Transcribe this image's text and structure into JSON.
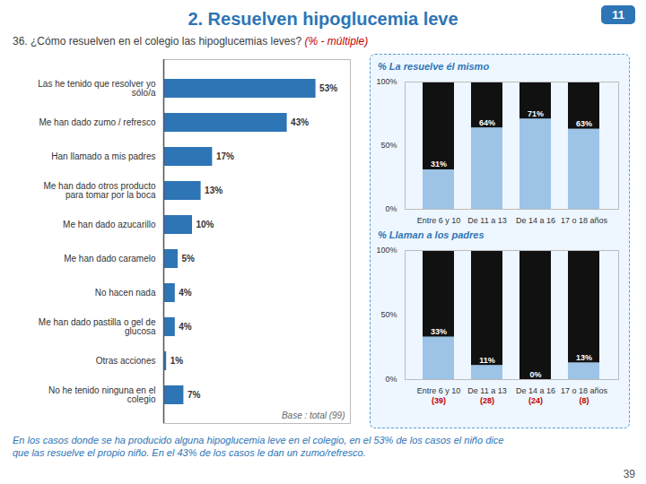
{
  "chart_data": [
    {
      "type": "bar",
      "orientation": "horizontal",
      "title": "2. Resuelven hipoglucemia leve",
      "subtitle": "36. ¿Cómo resuelven en el colegio las hipoglucemias leves? ",
      "categories": [
        "Las he tenido que resolver yo\nsólo/a",
        "Me han dado zumo / refresco",
        "Han llamado a mis padres",
        "Me han dado otros producto\npara tomar por la boca",
        "Me han dado azucarillo",
        "Me han dado caramelo",
        "No hacen nada",
        "Me han dado pastilla o gel de\nglucosa",
        "Otras acciones",
        "No he tenido ninguna en el\ncolegio"
      ],
      "values": [
        53,
        43,
        17,
        13,
        10,
        5,
        4,
        4,
        1,
        7
      ],
      "value_labels": [
        "53%",
        "43%",
        "17%",
        "13%",
        "10%",
        "5%",
        "4%",
        "4%",
        "1%",
        "7%"
      ],
      "data_labels": true,
      "color": "#2E75B6",
      "xlim": [
        0,
        65
      ],
      "tick_labels": "y",
      "grid": false,
      "annotations": [
        "(%  -  múltiple)",
        "Base : total (99)",
        "En los casos donde se ha producido alguna hipoglucemia leve en el colegio, en el 53% de los casos el niño dice",
        "que las resuelve el propio niño. En el 43% de los casos le dan un zumo/refresco.",
        "11",
        "39"
      ]
    },
    {
      "type": "bar",
      "title": "% La resuelve él mismo",
      "categories": [
        "Entre 6 y 10",
        "De 11 a 13",
        "De 14 a 16",
        "17 o 18 años"
      ],
      "values": [
        31,
        64,
        71,
        63
      ],
      "value_labels": [
        "31%",
        "64%",
        "71%",
        "63%"
      ],
      "data_labels": true,
      "color": "#9DC3E6",
      "ylim": [
        0,
        100
      ],
      "yticks": [
        {
          "value": 0,
          "label": "0%"
        },
        {
          "value": 50,
          "label": "50%"
        },
        {
          "value": 100,
          "label": "100%"
        }
      ],
      "grid": false
    },
    {
      "type": "bar",
      "title": "% Llaman a los padres",
      "categories": [
        "Entre 6 y 10",
        "De 11 a 13",
        "De 14 a 16",
        "17 o 18 años"
      ],
      "values": [
        33,
        11,
        0,
        13
      ],
      "value_labels": [
        "33%",
        "11%",
        "0%",
        "13%"
      ],
      "data_labels": true,
      "color": "#9DC3E6",
      "ylim": [
        0,
        100
      ],
      "yticks": [
        {
          "value": 0,
          "label": "0%"
        },
        {
          "value": 50,
          "label": "50%"
        },
        {
          "value": 100,
          "label": "100%"
        }
      ],
      "grid": false,
      "annotations": [
        "(39)",
        "(28)",
        "(24)",
        "(8)"
      ]
    }
  ]
}
